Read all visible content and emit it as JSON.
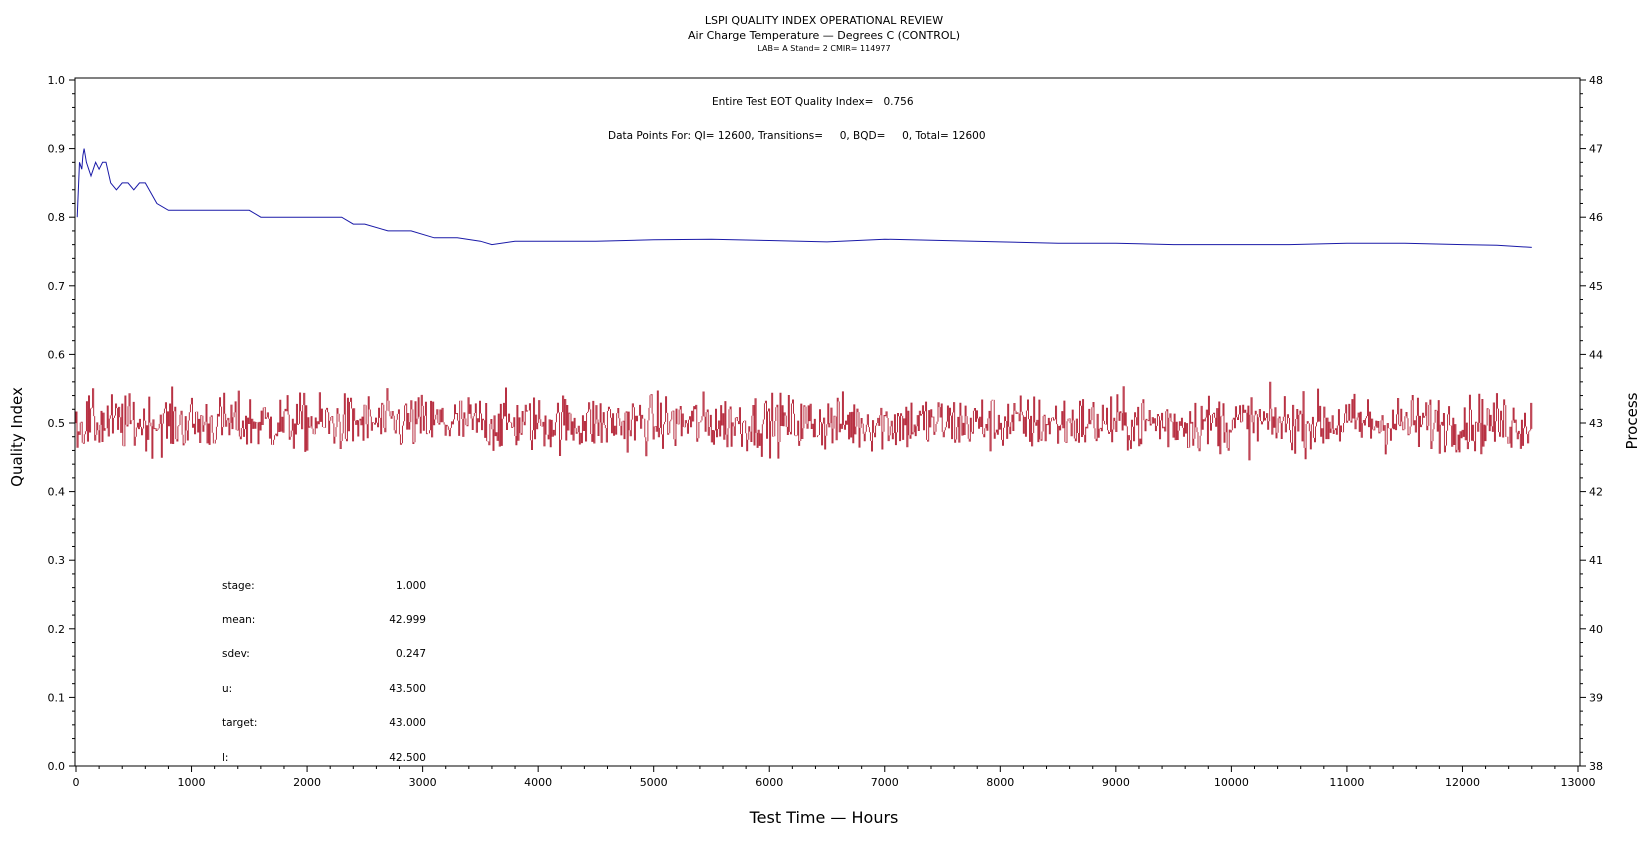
{
  "header": {
    "title": "LSPI QUALITY INDEX OPERATIONAL REVIEW",
    "subtitle": "Air Charge Temperature — Degrees C (CONTROL)",
    "info": "LAB= A Stand= 2 CMIR= 114977"
  },
  "annotations": {
    "eot": "Entire Test EOT Quality Index=   0.756",
    "datapoints": "Data Points For: QI= 12600, Transitions=     0, BQD=     0, Total= 12600"
  },
  "stats": [
    {
      "label": "stage:",
      "value": "1.000"
    },
    {
      "label": "mean:",
      "value": "42.999"
    },
    {
      "label": "sdev:",
      "value": "0.247"
    },
    {
      "label": "u:",
      "value": "43.500"
    },
    {
      "label": "target:",
      "value": "43.000"
    },
    {
      "label": "l:",
      "value": "42.500"
    }
  ],
  "chart_data": {
    "type": "line",
    "xlabel": "Test Time — Hours",
    "ylabel": "Quality Index",
    "y2label": "Process",
    "xlim": [
      0,
      13000
    ],
    "ylim": [
      0.0,
      1.0
    ],
    "y2lim": [
      38,
      48
    ],
    "x_ticks": [
      "0",
      "1000",
      "2000",
      "3000",
      "4000",
      "5000",
      "6000",
      "7000",
      "8000",
      "9000",
      "10000",
      "11000",
      "12000",
      "13000"
    ],
    "y_ticks": [
      "0.0",
      "0.1",
      "0.2",
      "0.3",
      "0.4",
      "0.5",
      "0.6",
      "0.7",
      "0.8",
      "0.9",
      "1.0"
    ],
    "y2_ticks": [
      "38",
      "39",
      "40",
      "41",
      "42",
      "43",
      "44",
      "45",
      "46",
      "47",
      "48"
    ],
    "grid": false,
    "colors": {
      "quality_index": "#1a1aa8",
      "process": "#b01a2e"
    },
    "series": [
      {
        "axis": "left",
        "x": [
          10,
          30,
          50,
          60,
          70,
          90,
          110,
          130,
          150,
          170,
          200,
          230,
          260,
          300,
          350,
          400,
          450,
          500,
          550,
          600,
          700,
          800,
          900,
          1000,
          1200,
          1400,
          1500,
          1600,
          1800,
          2000,
          2200,
          2300,
          2400,
          2500,
          2700,
          2900,
          3100,
          3300,
          3500,
          3600,
          3800,
          4000,
          4500,
          5000,
          5500,
          6000,
          6500,
          7000,
          7500,
          8000,
          8500,
          9000,
          9500,
          10000,
          10500,
          11000,
          11500,
          12000,
          12300,
          12600
        ],
        "y": [
          0.8,
          0.88,
          0.87,
          0.89,
          0.9,
          0.88,
          0.87,
          0.86,
          0.87,
          0.88,
          0.87,
          0.88,
          0.88,
          0.85,
          0.84,
          0.85,
          0.85,
          0.84,
          0.85,
          0.85,
          0.82,
          0.81,
          0.81,
          0.81,
          0.81,
          0.81,
          0.81,
          0.8,
          0.8,
          0.8,
          0.8,
          0.8,
          0.79,
          0.79,
          0.78,
          0.78,
          0.77,
          0.77,
          0.765,
          0.76,
          0.765,
          0.765,
          0.765,
          0.767,
          0.768,
          0.766,
          0.764,
          0.768,
          0.766,
          0.764,
          0.762,
          0.762,
          0.76,
          0.76,
          0.76,
          0.762,
          0.762,
          0.76,
          0.759,
          0.756
        ]
      },
      {
        "axis": "right",
        "x_range": [
          0,
          12600
        ],
        "mean": 42.999,
        "sdev": 0.247,
        "min": 42.2,
        "max": 43.6
      }
    ]
  }
}
